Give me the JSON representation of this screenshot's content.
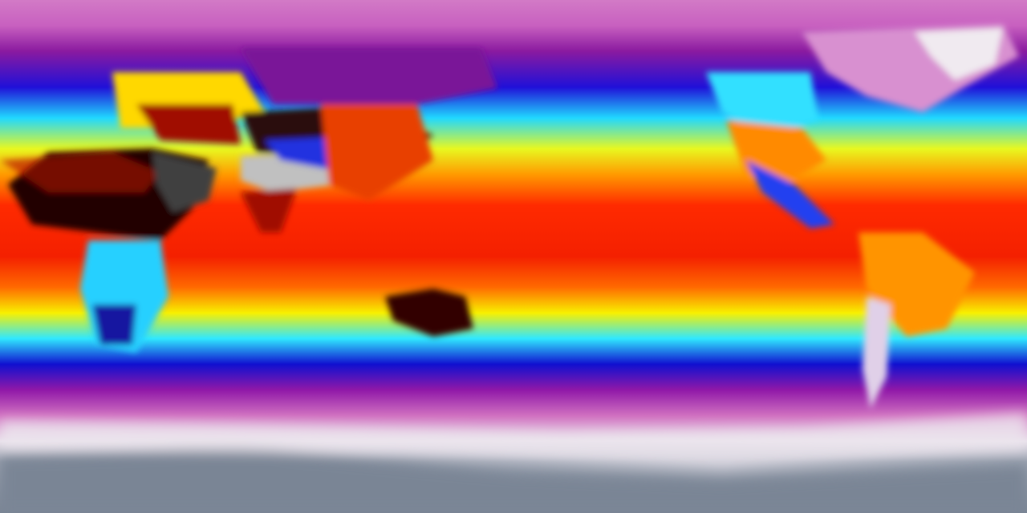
{
  "map": {
    "projection": "equirectangular",
    "colormap": [
      "#e8e4ee",
      "#d070c8",
      "#8a1a9a",
      "#1a10d8",
      "#20e0ff",
      "#f8f800",
      "#ff8a00",
      "#ff2000",
      "#b00000",
      "#200000",
      "#d0d0d0"
    ],
    "polar_color": "#7d8898"
  }
}
